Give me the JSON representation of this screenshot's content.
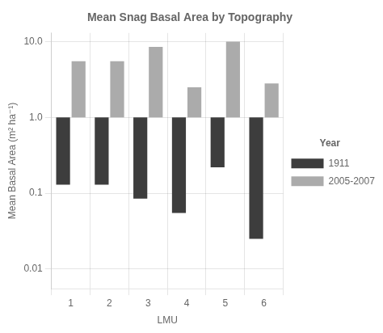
{
  "chart_data": {
    "type": "bar",
    "title": "Mean Snag Basal Area by Topography",
    "xlabel": "LMU",
    "ylabel": "Mean Basal Area (m² ha⁻¹)",
    "categories": [
      "1",
      "2",
      "3",
      "4",
      "5",
      "6"
    ],
    "series": [
      {
        "name": "1911",
        "color": "#3d3d3d",
        "values": [
          1.0,
          1.0,
          1.0,
          1.0,
          1.0,
          1.0
        ],
        "bottoms": [
          0.13,
          0.13,
          0.085,
          0.055,
          0.22,
          0.025
        ]
      },
      {
        "name": "2005-2007",
        "color": "#ababab",
        "values": [
          5.5,
          5.5,
          8.5,
          2.5,
          10.0,
          2.8
        ],
        "bottoms": [
          1.0,
          1.0,
          1.0,
          1.0,
          1.0,
          1.0
        ]
      }
    ],
    "log": "y",
    "ylim": [
      0.0055,
      13
    ],
    "yticks": [
      0.01,
      0.1,
      {
        "value": 1.0,
        "label": "1.0"
      },
      {
        "value": 10.0,
        "label": "10.0"
      }
    ],
    "grid": true,
    "legend": "right",
    "legend_title": "Year"
  }
}
